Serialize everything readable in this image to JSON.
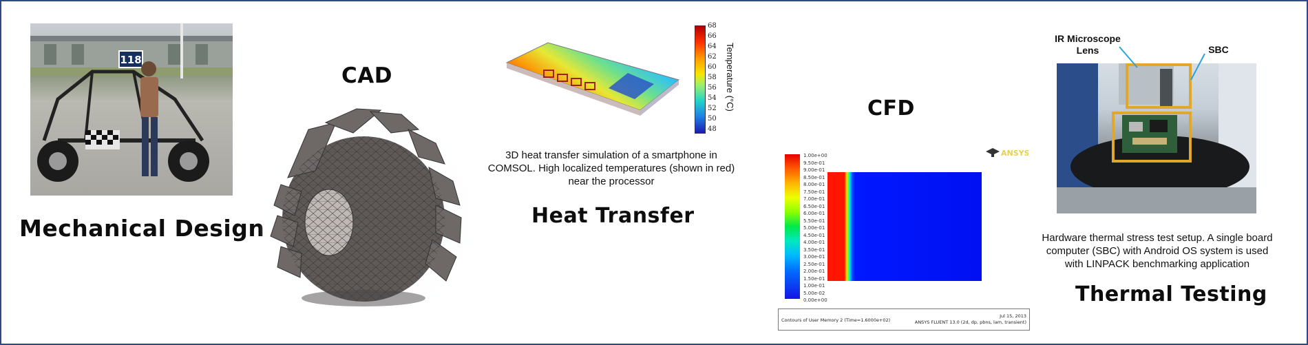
{
  "sections": {
    "mechanical_design": {
      "title": "Mechanical Design",
      "car_number": "118"
    },
    "cad": {
      "title": "CAD"
    },
    "heat_transfer": {
      "title": "Heat Transfer",
      "caption": "3D heat transfer simulation of a smartphone in COMSOL. High localized temperatures (shown in red) near the processor",
      "legend_title": "Temperature (°C)",
      "legend_ticks": [
        "68",
        "66",
        "64",
        "62",
        "60",
        "58",
        "56",
        "54",
        "52",
        "50",
        "48"
      ]
    },
    "cfd": {
      "title": "CFD",
      "scale_labels": [
        "1.00e+00",
        "9.50e-01",
        "9.00e-01",
        "8.50e-01",
        "8.00e-01",
        "7.50e-01",
        "7.00e-01",
        "6.50e-01",
        "6.00e-01",
        "5.50e-01",
        "5.00e-01",
        "4.50e-01",
        "4.00e-01",
        "3.50e-01",
        "3.00e-01",
        "2.50e-01",
        "2.00e-01",
        "1.50e-01",
        "1.00e-01",
        "5.00e-02",
        "0.00e+00"
      ],
      "logo_text": "ANSYS",
      "footer_left": "Contours of User Memory 2  (Time=1.6000e+02)",
      "footer_right_1": "Jul 15, 2013",
      "footer_right_2": "ANSYS FLUENT 13.0 (2d, dp, pbns, lam, transient)"
    },
    "thermal_testing": {
      "title": "Thermal Testing",
      "label_ir": "IR Microscope\nLens",
      "label_sbc": "SBC",
      "caption": "Hardware thermal stress test setup. A single board computer (SBC) with Android OS system is used with LINPACK benchmarking application"
    }
  },
  "colors": {
    "frame": "#2e4a86",
    "callout_box": "#e0a72a",
    "callout_line": "#2aa3d9"
  }
}
